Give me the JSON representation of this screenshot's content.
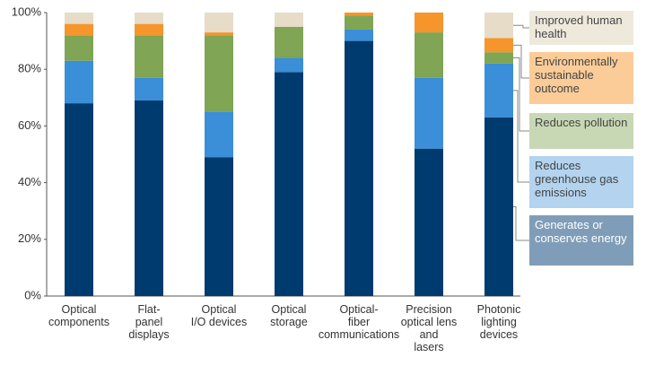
{
  "chart_data": {
    "type": "stacked_bar",
    "categories": [
      "Optical\ncomponents",
      "Flat-\npanel\ndisplays",
      "Optical\nI/O devices",
      "Optical\nstorage",
      "Optical-\nfiber\ncommunications",
      "Precision\noptical lens\nand\nlasers",
      "Photonic\nlighting\ndevices"
    ],
    "series": [
      {
        "name": "Generates or conserves energy",
        "color": "#003b6f",
        "legend_bg": "#7f9db8",
        "values": [
          68,
          69,
          49,
          79,
          90,
          52,
          63
        ]
      },
      {
        "name": "Reduces greenhouse gas emissions",
        "color": "#3b8ed8",
        "legend_bg": "#b3d3ef",
        "values": [
          15,
          8,
          16,
          5,
          4,
          25,
          19
        ]
      },
      {
        "name": "Reduces pollution",
        "color": "#7fa555",
        "legend_bg": "#c8d8b4",
        "values": [
          9,
          15,
          27,
          11,
          5,
          16,
          4
        ]
      },
      {
        "name": "Environmentally sustainable outcome",
        "color": "#f5952b",
        "legend_bg": "#fbcc98",
        "values": [
          4,
          4,
          1,
          0,
          1,
          7,
          5
        ]
      },
      {
        "name": "Improved human health",
        "color": "#e6dcc8",
        "legend_bg": "#efe9dc",
        "values": [
          4,
          4,
          7,
          5,
          0,
          0,
          9
        ]
      }
    ],
    "ylim": [
      0,
      100
    ],
    "yticks": [
      {
        "value": 0,
        "label": "0%"
      },
      {
        "value": 20,
        "label": "20%"
      },
      {
        "value": 40,
        "label": "40%"
      },
      {
        "value": 60,
        "label": "60%"
      },
      {
        "value": 80,
        "label": "80%"
      },
      {
        "value": 100,
        "label": "100%"
      }
    ]
  }
}
